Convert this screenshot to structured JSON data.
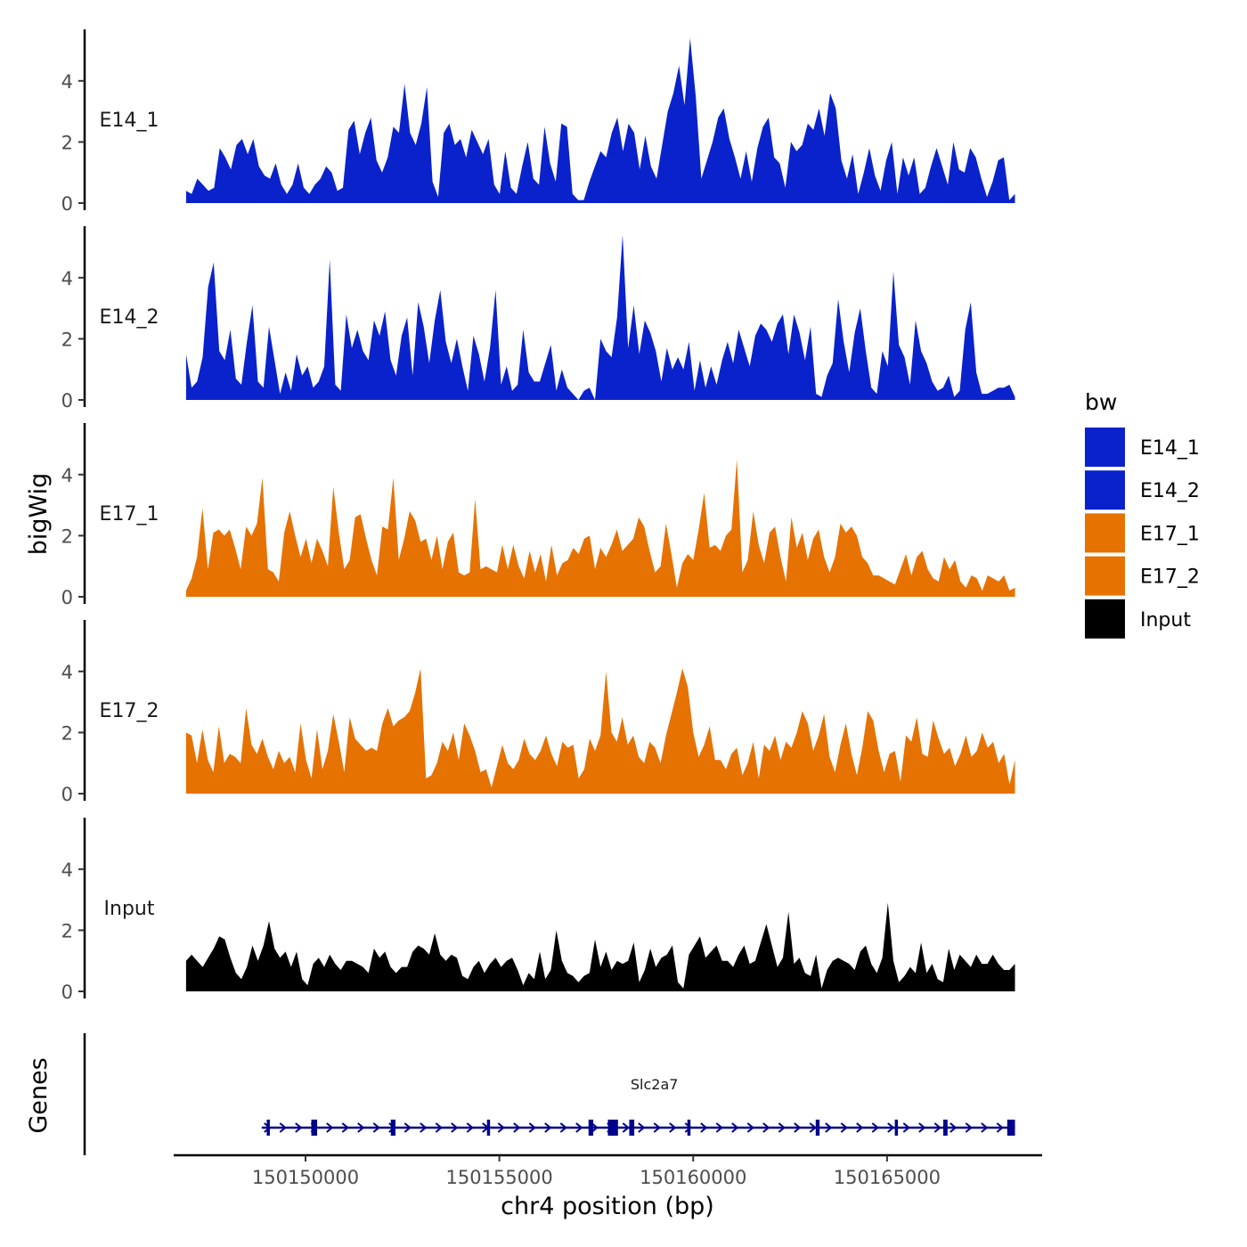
{
  "chart_data": {
    "type": "area",
    "ylabel": "bigWig",
    "xlabel": "chr4 position (bp)",
    "xlim": [
      150146600,
      150169000
    ],
    "ylim": [
      0,
      5.5
    ],
    "x_ticks": [
      150150000,
      150155000,
      150160000,
      150165000
    ],
    "x_tick_labels": [
      "150150000",
      "150155000",
      "150160000",
      "150165000"
    ],
    "y_ticks": [
      0,
      2,
      4
    ],
    "y_tick_labels": [
      "0",
      "2",
      "4"
    ],
    "data_range": [
      150146920,
      150168300
    ],
    "tracks": [
      {
        "name": "E14_1",
        "label": "E14_1",
        "color": "#0a22cc",
        "values": [
          0.4,
          0.3,
          0.8,
          0.6,
          0.4,
          0.5,
          1.8,
          1.5,
          1.1,
          1.9,
          2.1,
          1.6,
          2.1,
          1.2,
          0.9,
          0.8,
          1.3,
          0.6,
          0.3,
          0.6,
          1.3,
          0.5,
          0.3,
          0.6,
          0.8,
          1.2,
          1.0,
          0.4,
          0.5,
          2.4,
          2.7,
          1.6,
          2.3,
          2.8,
          1.4,
          1.0,
          1.5,
          2.5,
          2.3,
          3.9,
          2.3,
          1.9,
          2.6,
          3.8,
          0.7,
          0.2,
          2.3,
          2.6,
          1.9,
          2.1,
          1.5,
          2.4,
          2.0,
          1.6,
          2.1,
          0.6,
          0.3,
          1.7,
          0.5,
          0.3,
          1.2,
          2.0,
          0.8,
          0.6,
          2.5,
          1.3,
          0.7,
          2.6,
          2.5,
          0.3,
          0.1,
          0.1,
          0.7,
          1.2,
          1.7,
          1.5,
          2.3,
          2.8,
          1.7,
          2.6,
          2.3,
          1.1,
          2.2,
          1.2,
          0.8,
          1.9,
          3.0,
          3.6,
          4.5,
          3.2,
          5.4,
          3.5,
          0.8,
          1.4,
          2.0,
          2.8,
          3.1,
          2.1,
          1.5,
          0.8,
          1.7,
          0.7,
          1.8,
          2.5,
          2.8,
          1.5,
          1.3,
          0.5,
          2.0,
          1.7,
          1.9,
          2.6,
          2.4,
          3.1,
          2.2,
          3.6,
          3.1,
          1.4,
          0.8,
          1.6,
          0.3,
          1.0,
          1.8,
          0.9,
          0.4,
          1.4,
          2.0,
          0.3,
          1.5,
          0.9,
          1.5,
          0.3,
          0.5,
          1.2,
          1.8,
          1.2,
          0.6,
          2.0,
          1.1,
          1.0,
          1.8,
          1.5,
          0.8,
          0.2,
          0.7,
          1.4,
          1.5,
          0.1,
          0.3
        ]
      },
      {
        "name": "E14_2",
        "label": "E14_2",
        "color": "#0a22cc",
        "values": [
          1.5,
          0.4,
          0.6,
          1.4,
          3.7,
          4.5,
          1.6,
          1.3,
          2.3,
          0.7,
          0.5,
          1.9,
          3.1,
          0.6,
          0.4,
          2.4,
          1.3,
          0.2,
          0.9,
          0.3,
          1.5,
          0.8,
          1.1,
          0.4,
          0.6,
          1.1,
          4.6,
          0.5,
          0.3,
          2.8,
          1.7,
          2.3,
          1.6,
          1.3,
          2.6,
          2.1,
          2.9,
          1.3,
          0.8,
          2.1,
          2.7,
          0.8,
          3.2,
          2.4,
          1.2,
          2.6,
          3.6,
          1.9,
          1.2,
          2.0,
          1.1,
          0.3,
          2.1,
          1.5,
          0.6,
          1.7,
          3.6,
          0.5,
          1.1,
          0.3,
          0.5,
          2.3,
          0.9,
          0.6,
          0.6,
          1.2,
          1.8,
          0.3,
          1.0,
          0.4,
          0.2,
          0.0,
          0.3,
          0.4,
          0.0,
          2.0,
          1.6,
          1.4,
          2.7,
          5.4,
          1.7,
          3.1,
          1.5,
          2.6,
          2.2,
          1.6,
          0.6,
          1.7,
          1.0,
          1.4,
          1.0,
          1.9,
          0.3,
          1.3,
          0.4,
          1.1,
          0.5,
          1.3,
          1.9,
          1.2,
          2.3,
          1.7,
          1.1,
          2.1,
          2.5,
          2.3,
          1.9,
          2.5,
          2.8,
          1.5,
          2.8,
          2.2,
          1.3,
          2.4,
          0.2,
          0.1,
          0.8,
          1.2,
          3.3,
          1.9,
          0.9,
          2.2,
          3.0,
          1.6,
          0.4,
          0.2,
          1.6,
          1.1,
          4.2,
          1.8,
          1.4,
          0.5,
          2.6,
          1.6,
          1.2,
          0.6,
          0.3,
          0.4,
          0.8,
          0.1,
          0.3,
          2.3,
          3.2,
          0.9,
          0.2,
          0.2,
          0.3,
          0.4,
          0.4,
          0.5,
          0.1
        ]
      },
      {
        "name": "E17_1",
        "label": "E17_1",
        "color": "#e67202",
        "values": [
          0.2,
          0.6,
          1.3,
          2.9,
          0.9,
          2.1,
          2.2,
          2.0,
          2.2,
          1.6,
          0.9,
          2.3,
          2.0,
          2.4,
          3.9,
          0.9,
          0.8,
          0.5,
          2.1,
          2.8,
          2.0,
          1.3,
          1.9,
          1.1,
          1.9,
          1.5,
          1.0,
          3.6,
          2.1,
          0.9,
          1.2,
          2.6,
          2.7,
          1.9,
          1.2,
          0.7,
          2.3,
          2.2,
          3.9,
          1.2,
          1.9,
          2.8,
          2.5,
          1.8,
          1.9,
          1.2,
          2.0,
          0.9,
          1.8,
          2.1,
          0.8,
          0.7,
          0.8,
          3.2,
          0.9,
          1.0,
          0.9,
          0.8,
          1.7,
          0.9,
          1.7,
          1.0,
          0.6,
          1.5,
          0.8,
          1.4,
          0.5,
          1.7,
          0.7,
          1.1,
          1.2,
          1.6,
          1.4,
          1.9,
          2.0,
          0.9,
          1.6,
          1.3,
          1.7,
          2.2,
          1.5,
          1.7,
          1.9,
          2.6,
          2.3,
          1.5,
          0.8,
          1.0,
          2.4,
          1.4,
          0.3,
          1.1,
          1.4,
          1.2,
          2.2,
          3.4,
          1.6,
          1.7,
          1.5,
          2.0,
          2.2,
          4.5,
          0.8,
          1.2,
          2.8,
          1.7,
          1.1,
          2.1,
          2.3,
          1.3,
          0.5,
          2.6,
          1.6,
          2.1,
          1.2,
          1.9,
          2.2,
          1.3,
          0.8,
          1.3,
          2.4,
          2.1,
          2.3,
          2.0,
          1.3,
          1.1,
          0.7,
          0.7,
          0.6,
          0.5,
          0.4,
          0.9,
          1.4,
          0.7,
          1.3,
          1.5,
          0.9,
          0.6,
          0.5,
          1.3,
          0.9,
          1.2,
          0.5,
          0.3,
          0.7,
          0.6,
          0.2,
          0.7,
          0.6,
          0.5,
          0.7,
          0.2,
          0.3
        ]
      },
      {
        "name": "E17_2",
        "label": "E17_2",
        "color": "#e67202",
        "values": [
          2.0,
          1.9,
          1.0,
          2.1,
          1.1,
          0.7,
          2.2,
          1.0,
          1.3,
          1.2,
          1.0,
          2.8,
          1.6,
          1.3,
          1.8,
          1.2,
          0.8,
          1.4,
          1.0,
          1.2,
          0.7,
          2.3,
          1.1,
          0.5,
          2.1,
          0.8,
          1.4,
          2.6,
          1.7,
          0.7,
          2.5,
          1.8,
          1.6,
          1.4,
          1.5,
          1.4,
          2.3,
          2.8,
          2.2,
          2.4,
          2.5,
          2.7,
          3.3,
          4.1,
          0.5,
          0.6,
          1.0,
          1.7,
          1.4,
          2.0,
          1.1,
          2.3,
          1.9,
          1.4,
          0.7,
          0.8,
          0.2,
          0.9,
          1.6,
          1.0,
          0.8,
          1.1,
          1.8,
          1.3,
          1.1,
          1.4,
          1.9,
          1.3,
          0.9,
          1.7,
          1.5,
          1.6,
          0.5,
          0.8,
          1.8,
          1.4,
          1.9,
          4.0,
          2.0,
          1.7,
          2.5,
          1.6,
          1.9,
          1.2,
          1.0,
          1.7,
          1.5,
          1.0,
          1.9,
          2.6,
          3.3,
          4.1,
          3.5,
          2.0,
          1.2,
          1.6,
          2.2,
          1.1,
          1.1,
          0.8,
          1.3,
          1.5,
          0.6,
          1.0,
          1.7,
          0.5,
          1.6,
          1.4,
          1.9,
          1.1,
          1.7,
          1.5,
          2.0,
          2.7,
          2.3,
          1.4,
          1.9,
          2.6,
          1.2,
          0.7,
          1.6,
          2.3,
          1.3,
          0.6,
          1.5,
          2.7,
          2.4,
          1.4,
          0.7,
          1.3,
          1.4,
          0.4,
          1.9,
          1.7,
          2.5,
          1.3,
          1.2,
          2.4,
          1.8,
          1.3,
          1.5,
          0.9,
          1.3,
          1.9,
          1.2,
          1.4,
          2.0,
          1.5,
          1.7,
          1.0,
          1.3,
          0.3,
          1.1
        ]
      },
      {
        "name": "Input",
        "label": "Input",
        "color": "#000000",
        "values": [
          1.0,
          1.2,
          1.0,
          0.8,
          1.1,
          1.4,
          1.8,
          1.7,
          1.1,
          0.6,
          0.4,
          0.8,
          1.5,
          1.0,
          1.5,
          2.3,
          1.4,
          1.1,
          1.3,
          0.8,
          1.3,
          0.4,
          0.2,
          0.9,
          1.1,
          0.8,
          1.2,
          0.9,
          0.7,
          1.0,
          1.0,
          0.9,
          0.8,
          0.6,
          1.4,
          1.1,
          1.3,
          0.8,
          0.6,
          0.8,
          0.8,
          1.3,
          1.5,
          1.4,
          1.2,
          1.9,
          1.2,
          1.0,
          1.2,
          1.1,
          0.5,
          0.4,
          0.8,
          1.0,
          0.6,
          0.9,
          1.1,
          0.8,
          1.0,
          1.1,
          0.7,
          0.2,
          0.6,
          0.4,
          1.3,
          0.4,
          0.7,
          2.0,
          1.0,
          0.6,
          0.5,
          0.3,
          0.5,
          0.6,
          1.7,
          0.8,
          1.3,
          0.7,
          1.0,
          0.9,
          1.0,
          1.6,
          0.3,
          0.7,
          1.4,
          0.8,
          1.1,
          1.2,
          1.5,
          0.3,
          0.1,
          1.2,
          1.5,
          1.8,
          1.1,
          1.3,
          1.5,
          1.0,
          1.0,
          0.8,
          1.2,
          1.5,
          0.9,
          1.0,
          1.6,
          2.2,
          1.5,
          0.8,
          1.1,
          2.6,
          0.9,
          1.1,
          0.6,
          0.5,
          1.2,
          0.1,
          0.7,
          1.0,
          1.1,
          1.0,
          0.9,
          0.7,
          1.3,
          1.5,
          0.9,
          0.6,
          1.1,
          2.9,
          1.0,
          0.3,
          0.5,
          0.8,
          0.6,
          1.6,
          0.6,
          0.9,
          0.4,
          0.3,
          1.4,
          0.7,
          1.2,
          1.0,
          0.8,
          1.2,
          0.9,
          0.9,
          1.2,
          0.9,
          0.7,
          0.7,
          0.9
        ]
      }
    ],
    "legend": {
      "title": "bw",
      "position": "right",
      "entries": [
        {
          "label": "E14_1",
          "color": "#0a22cc"
        },
        {
          "label": "E14_2",
          "color": "#0a22cc"
        },
        {
          "label": "E17_1",
          "color": "#e67202"
        },
        {
          "label": "E17_2",
          "color": "#e67202"
        },
        {
          "label": "Input",
          "color": "#000000"
        }
      ]
    },
    "genes": {
      "panel_label": "Genes",
      "color": "#00008b",
      "items": [
        {
          "name": "Slc2a7",
          "start": 150148870,
          "end": 150168300,
          "strand": "+",
          "exons": [
            [
              150149000,
              150149080
            ],
            [
              150150150,
              150150300
            ],
            [
              150152200,
              150152320
            ],
            [
              150154680,
              150154760
            ],
            [
              150157300,
              150157420
            ],
            [
              150157800,
              150158060
            ],
            [
              150158350,
              150158480
            ],
            [
              150159850,
              150159930
            ],
            [
              150163160,
              150163260
            ],
            [
              150165200,
              150165280
            ],
            [
              150166450,
              150166560
            ],
            [
              150168100,
              150168300
            ]
          ]
        }
      ]
    }
  }
}
